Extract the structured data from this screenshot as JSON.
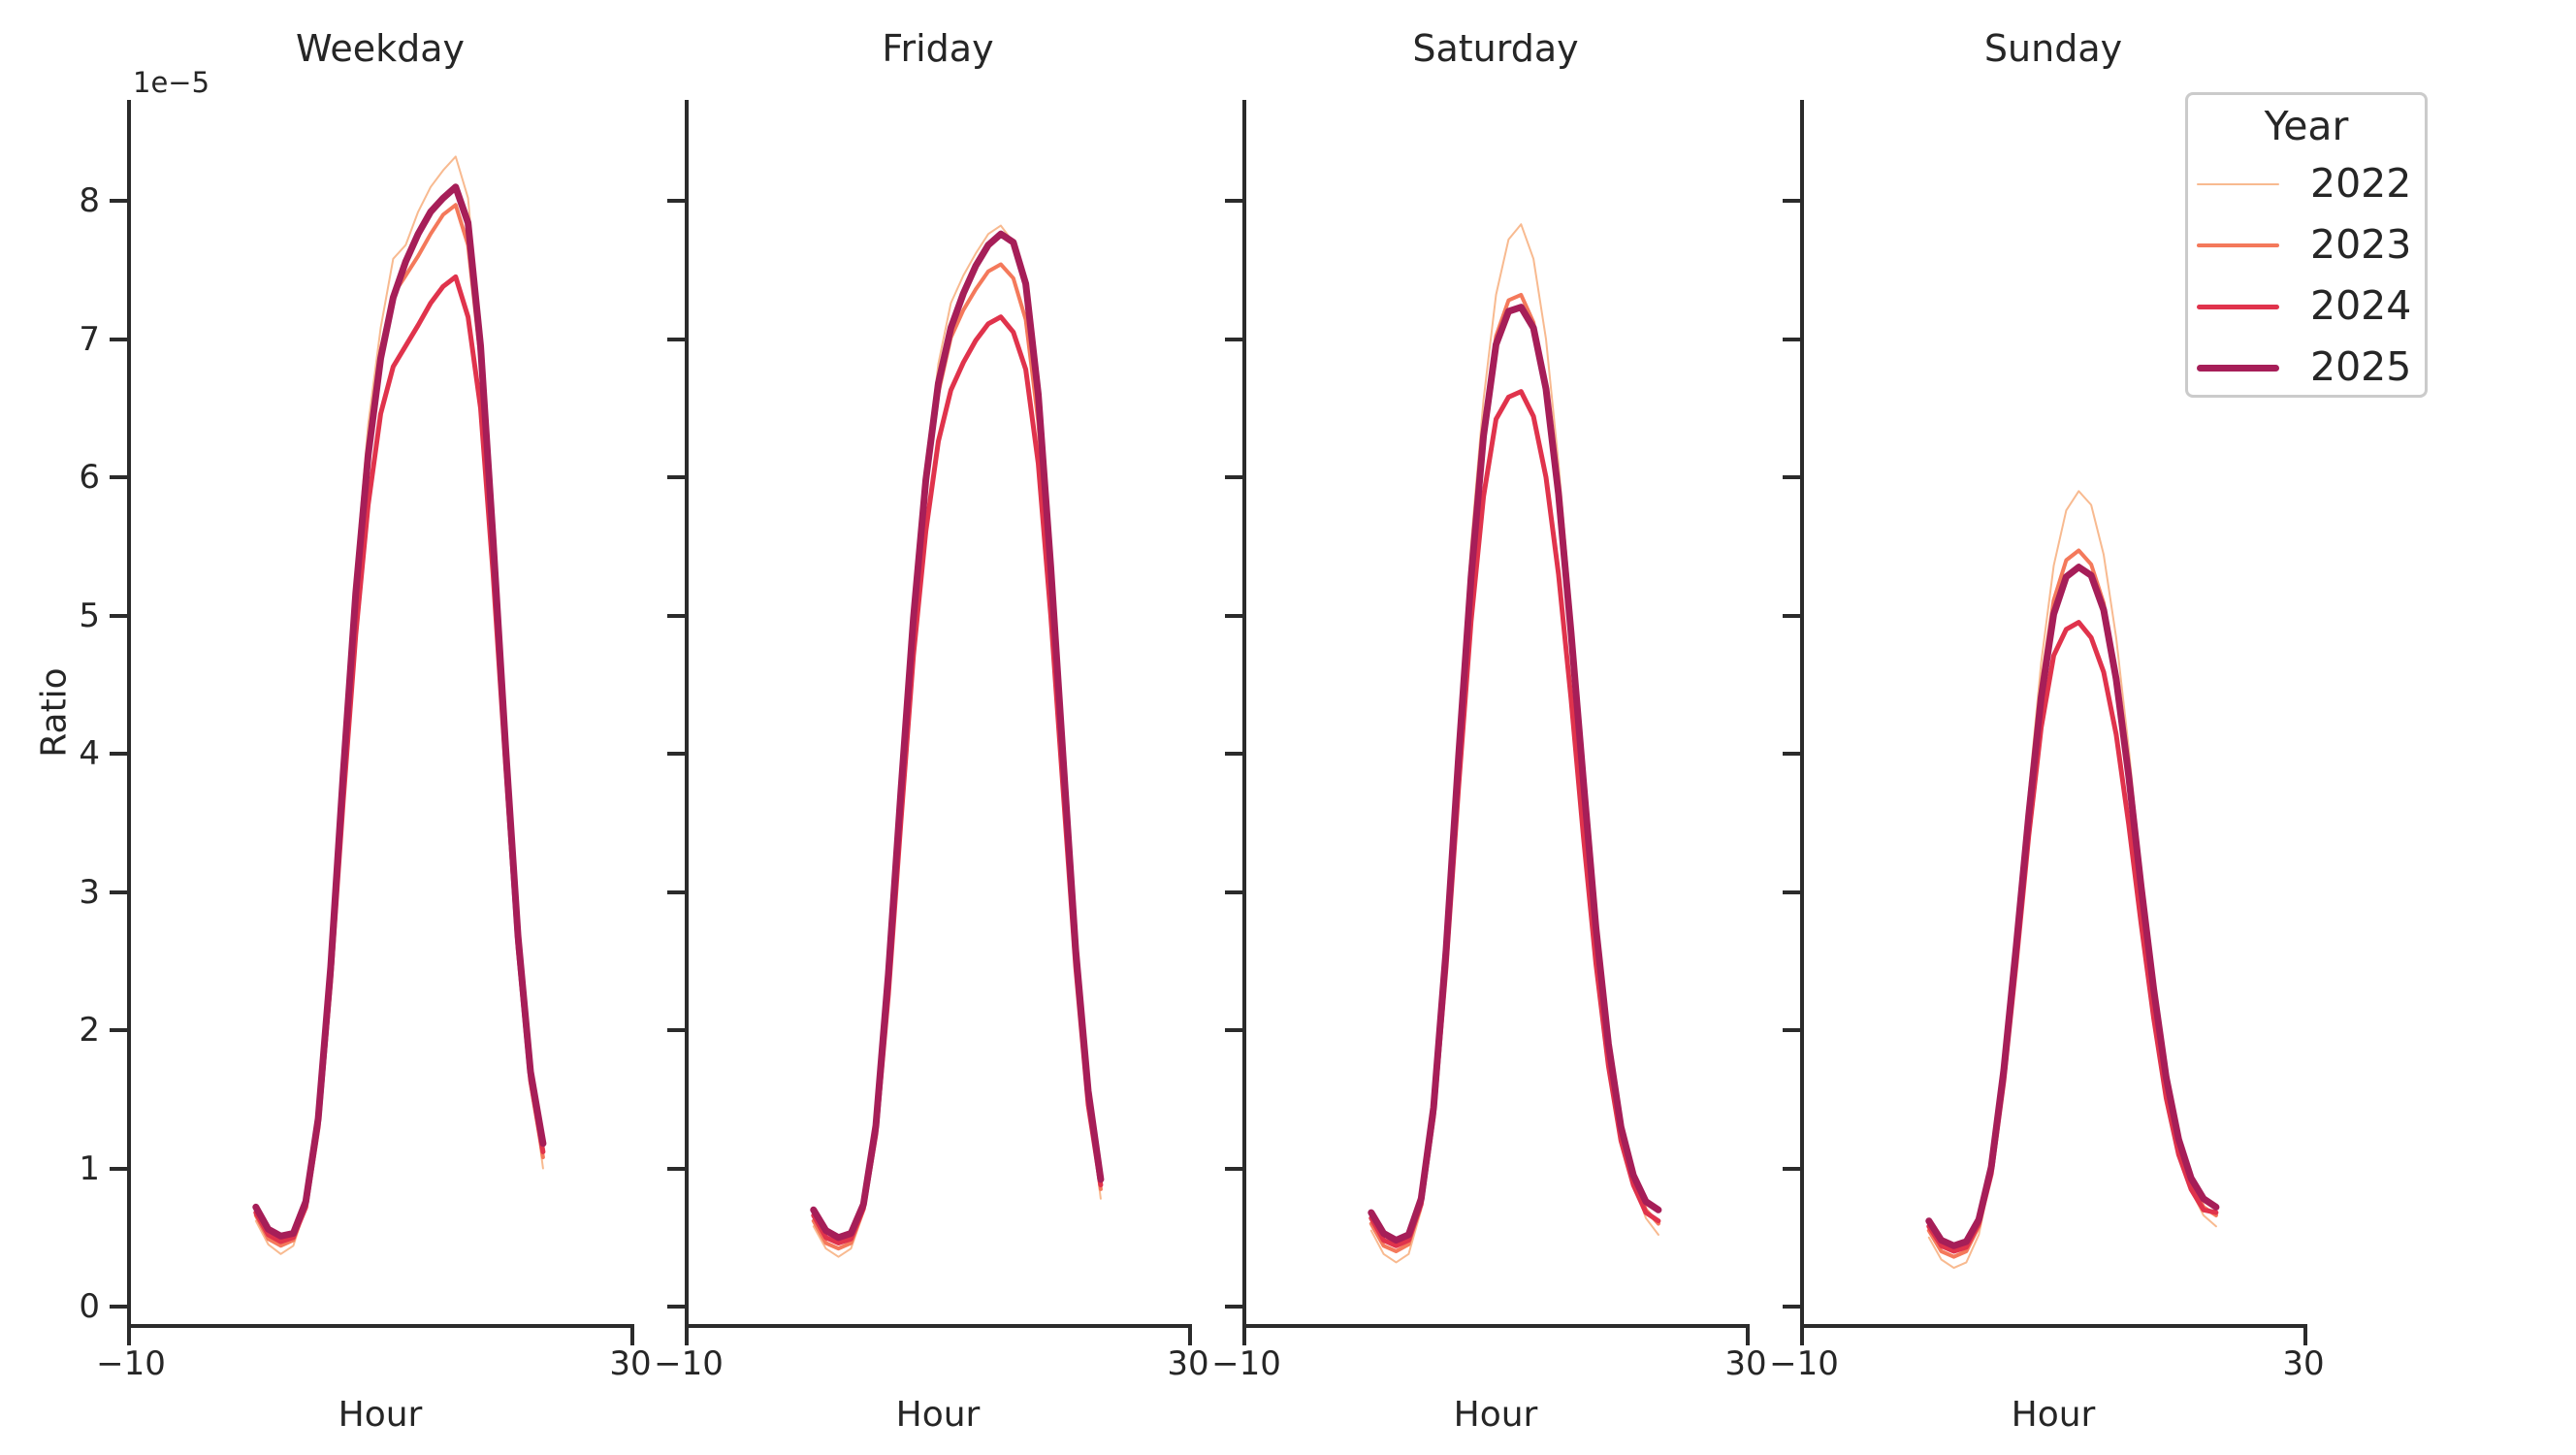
{
  "figure": {
    "background": "#ffffff",
    "text_color": "#262626",
    "spine_color": "#2b2b2b",
    "legend_border_color": "#cbcbcb"
  },
  "axis": {
    "xlabel": "Hour",
    "ylabel": "Ratio",
    "offset_text": "1e−5",
    "y_tick_labels": [
      "0",
      "1",
      "2",
      "3",
      "4",
      "5",
      "6",
      "7",
      "8"
    ],
    "x_tick_labels": [
      "−10",
      "30"
    ],
    "xlim": [
      -10,
      30
    ]
  },
  "legend": {
    "title": "Year",
    "entries": [
      {
        "label": "2022",
        "color": "#f8ba90",
        "line_width": 2
      },
      {
        "label": "2023",
        "color": "#f4795b",
        "line_width": 4
      },
      {
        "label": "2024",
        "color": "#e0334c",
        "line_width": 5
      },
      {
        "label": "2025",
        "color": "#a61e58",
        "line_width": 7
      }
    ]
  },
  "chart_data": {
    "type": "line",
    "title": "",
    "xlabel": "Hour",
    "ylabel": "Ratio",
    "y_unit_multiplier": "1e−5",
    "xlim": [
      -10,
      30
    ],
    "ylim": [
      0,
      8.6
    ],
    "grid": false,
    "legend_position": "top-right",
    "legend_title": "Year",
    "x": [
      0,
      1,
      2,
      3,
      4,
      5,
      6,
      7,
      8,
      9,
      10,
      11,
      12,
      13,
      14,
      15,
      16,
      17,
      18,
      19,
      20,
      21,
      22,
      23
    ],
    "facets": [
      {
        "title": "Weekday",
        "series": [
          {
            "name": "2022",
            "values": [
              0.62,
              0.45,
              0.38,
              0.44,
              0.72,
              1.42,
              2.58,
              4.02,
              5.32,
              6.38,
              7.08,
              7.58,
              7.68,
              7.92,
              8.1,
              8.22,
              8.32,
              8.02,
              7.0,
              5.58,
              4.08,
              2.7,
              1.68,
              1.0
            ]
          },
          {
            "name": "2023",
            "values": [
              0.66,
              0.49,
              0.44,
              0.48,
              0.73,
              1.37,
              2.5,
              3.9,
              5.2,
              6.22,
              6.92,
              7.32,
              7.46,
              7.6,
              7.76,
              7.9,
              7.97,
              7.68,
              6.85,
              5.48,
              4.0,
              2.64,
              1.62,
              1.08
            ]
          },
          {
            "name": "2024",
            "values": [
              0.68,
              0.52,
              0.47,
              0.5,
              0.72,
              1.3,
              2.36,
              3.66,
              4.86,
              5.8,
              6.46,
              6.8,
              6.95,
              7.1,
              7.26,
              7.38,
              7.45,
              7.16,
              6.5,
              5.3,
              3.92,
              2.6,
              1.64,
              1.12
            ]
          },
          {
            "name": "2025",
            "values": [
              0.72,
              0.56,
              0.51,
              0.53,
              0.76,
              1.36,
              2.46,
              3.86,
              5.16,
              6.16,
              6.86,
              7.3,
              7.56,
              7.76,
              7.92,
              8.02,
              8.1,
              7.84,
              6.95,
              5.55,
              4.05,
              2.68,
              1.7,
              1.18
            ]
          }
        ]
      },
      {
        "title": "Friday",
        "series": [
          {
            "name": "2022",
            "values": [
              0.58,
              0.42,
              0.36,
              0.42,
              0.68,
              1.33,
              2.46,
              3.82,
              5.06,
              6.06,
              6.82,
              7.26,
              7.46,
              7.62,
              7.76,
              7.82,
              7.7,
              7.34,
              6.54,
              5.3,
              3.9,
              2.54,
              1.5,
              0.78
            ]
          },
          {
            "name": "2023",
            "values": [
              0.62,
              0.46,
              0.42,
              0.46,
              0.7,
              1.29,
              2.39,
              3.71,
              4.96,
              5.93,
              6.61,
              7.01,
              7.21,
              7.36,
              7.49,
              7.54,
              7.44,
              7.14,
              6.4,
              5.2,
              3.84,
              2.52,
              1.5,
              0.85
            ]
          },
          {
            "name": "2024",
            "values": [
              0.66,
              0.5,
              0.46,
              0.49,
              0.71,
              1.25,
              2.26,
              3.51,
              4.71,
              5.61,
              6.26,
              6.63,
              6.83,
              6.99,
              7.11,
              7.16,
              7.05,
              6.78,
              6.1,
              5.0,
              3.72,
              2.46,
              1.46,
              0.88
            ]
          },
          {
            "name": "2025",
            "values": [
              0.7,
              0.55,
              0.5,
              0.53,
              0.74,
              1.31,
              2.41,
              3.73,
              4.98,
              5.98,
              6.68,
              7.08,
              7.33,
              7.53,
              7.68,
              7.76,
              7.7,
              7.4,
              6.6,
              5.35,
              3.95,
              2.58,
              1.56,
              0.92
            ]
          }
        ]
      },
      {
        "title": "Saturday",
        "series": [
          {
            "name": "2022",
            "values": [
              0.55,
              0.38,
              0.32,
              0.38,
              0.7,
              1.5,
              2.72,
              4.16,
              5.52,
              6.56,
              7.32,
              7.72,
              7.83,
              7.58,
              7.0,
              6.1,
              5.05,
              3.9,
              2.8,
              1.94,
              1.3,
              0.9,
              0.64,
              0.52
            ]
          },
          {
            "name": "2023",
            "values": [
              0.6,
              0.44,
              0.4,
              0.45,
              0.74,
              1.46,
              2.62,
              4.02,
              5.32,
              6.36,
              7.02,
              7.28,
              7.32,
              7.12,
              6.62,
              5.86,
              4.86,
              3.76,
              2.7,
              1.88,
              1.28,
              0.92,
              0.7,
              0.6
            ]
          },
          {
            "name": "2024",
            "values": [
              0.64,
              0.48,
              0.44,
              0.48,
              0.74,
              1.38,
              2.46,
              3.76,
              4.96,
              5.86,
              6.42,
              6.58,
              6.62,
              6.44,
              6.0,
              5.3,
              4.4,
              3.4,
              2.48,
              1.74,
              1.2,
              0.88,
              0.68,
              0.62
            ]
          },
          {
            "name": "2025",
            "values": [
              0.68,
              0.53,
              0.48,
              0.52,
              0.78,
              1.44,
              2.58,
              3.98,
              5.28,
              6.3,
              6.96,
              7.2,
              7.23,
              7.08,
              6.64,
              5.88,
              4.88,
              3.8,
              2.74,
              1.9,
              1.3,
              0.95,
              0.76,
              0.7
            ]
          }
        ]
      },
      {
        "title": "Sunday",
        "series": [
          {
            "name": "2022",
            "values": [
              0.5,
              0.34,
              0.28,
              0.32,
              0.52,
              0.95,
              1.7,
              2.66,
              3.72,
              4.66,
              5.36,
              5.76,
              5.9,
              5.8,
              5.44,
              4.84,
              4.04,
              3.14,
              2.34,
              1.64,
              1.14,
              0.84,
              0.66,
              0.58
            ]
          },
          {
            "name": "2023",
            "values": [
              0.55,
              0.4,
              0.36,
              0.4,
              0.58,
              0.98,
              1.71,
              2.62,
              3.61,
              4.49,
              5.11,
              5.4,
              5.47,
              5.37,
              5.09,
              4.57,
              3.84,
              3.01,
              2.27,
              1.61,
              1.16,
              0.88,
              0.72,
              0.66
            ]
          },
          {
            "name": "2024",
            "values": [
              0.58,
              0.44,
              0.4,
              0.43,
              0.6,
              0.96,
              1.63,
              2.49,
              3.41,
              4.19,
              4.71,
              4.9,
              4.95,
              4.84,
              4.59,
              4.14,
              3.49,
              2.77,
              2.09,
              1.51,
              1.1,
              0.85,
              0.7,
              0.68
            ]
          },
          {
            "name": "2025",
            "values": [
              0.62,
              0.48,
              0.44,
              0.47,
              0.63,
              1.01,
              1.71,
              2.61,
              3.56,
              4.41,
              5.01,
              5.28,
              5.35,
              5.29,
              5.04,
              4.54,
              3.84,
              3.04,
              2.3,
              1.66,
              1.21,
              0.93,
              0.78,
              0.72
            ]
          }
        ]
      }
    ]
  }
}
